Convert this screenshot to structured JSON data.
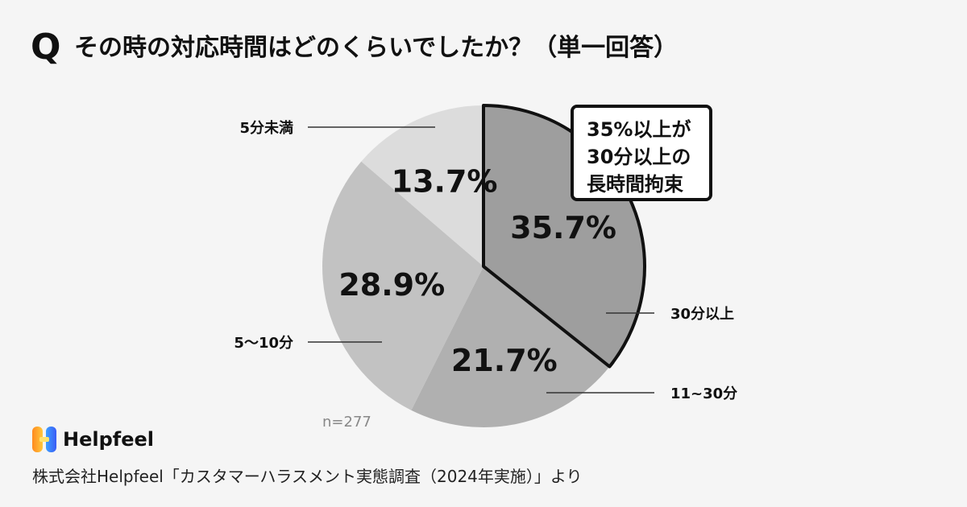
{
  "header": {
    "q_mark": "Q",
    "question": "その時の対応時間はどのくらいでしたか？（単一回答）"
  },
  "chart_data": {
    "type": "pie",
    "categories": [
      "30分以上",
      "11~30分",
      "5〜10分",
      "5分未満"
    ],
    "values": [
      35.7,
      21.7,
      28.9,
      13.7
    ],
    "value_labels": [
      "35.7%",
      "21.7%",
      "28.9%",
      "13.7%"
    ],
    "colors": [
      "#9e9e9e",
      "#b0b0b0",
      "#c2c2c2",
      "#dcdcdc"
    ],
    "highlight_index": 0,
    "start": "12 o'clock, clockwise",
    "n_label": "n=277"
  },
  "callout": {
    "lines": [
      "35%以上が",
      "30分以上の",
      "長時間拘束"
    ]
  },
  "footer": {
    "brand": "Helpfeel",
    "logo_icon": "helpfeel-logo-icon",
    "logo_colors": [
      "#ff8a1f",
      "#ffc83d",
      "#3da0ff",
      "#3a5cf5"
    ],
    "source": "株式会社Helpfeel「カスタマーハラスメント実態調査（2024年実施）」より"
  }
}
